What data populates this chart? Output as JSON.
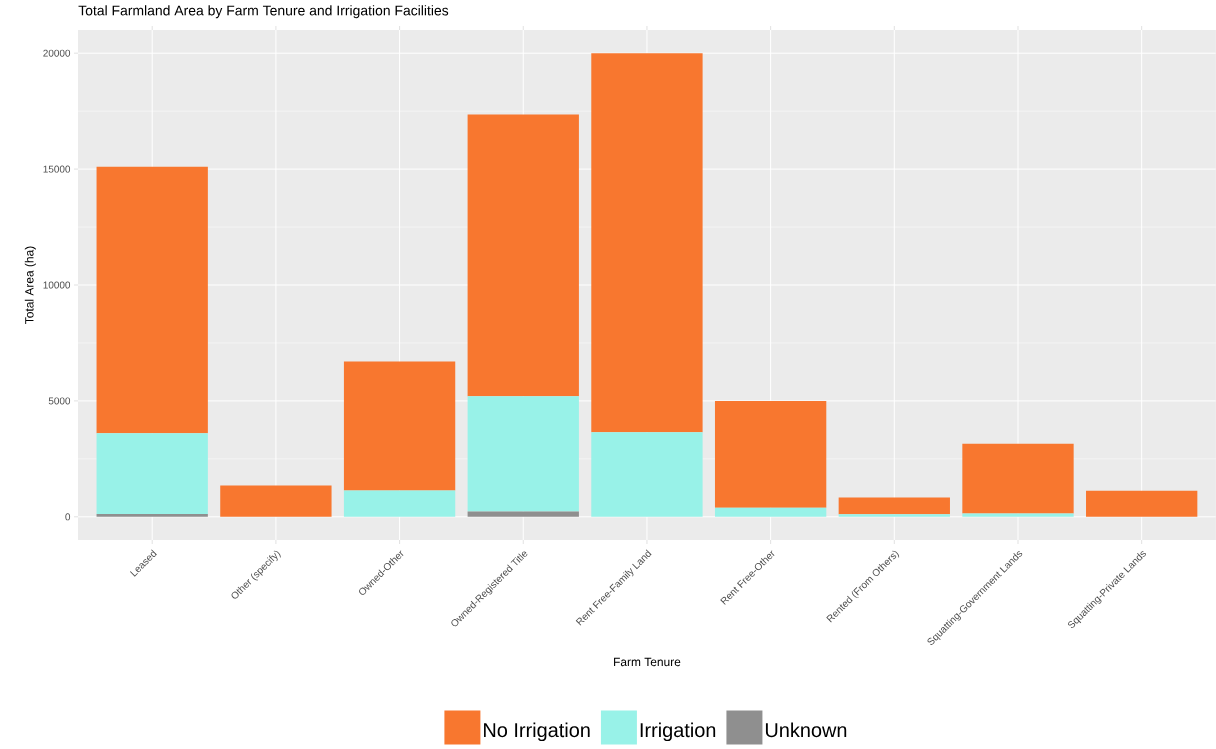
{
  "chart_data": {
    "type": "bar",
    "title": "Total Farmland Area by Farm Tenure and Irrigation Facilities",
    "xlabel": "Farm Tenure",
    "ylabel": "Total Area (ha)",
    "categories": [
      "Leased",
      "Other (specify)",
      "Owned-Other",
      "Owned-Registered Title",
      "Rent Free-Family Land",
      "Rent Free-Other",
      "Rented (From Others)",
      "Squatting-Government Lands",
      "Squatting-Private Lands"
    ],
    "stacked": true,
    "series": [
      {
        "name": "Unknown",
        "color": "#8f8f8f",
        "values": [
          120,
          null,
          null,
          230,
          null,
          null,
          null,
          null,
          null
        ]
      },
      {
        "name": "Irrigation",
        "color": "#98f2e8",
        "values": [
          3480,
          null,
          1140,
          4970,
          3650,
          390,
          110,
          140,
          null
        ]
      },
      {
        "name": "No Irrigation",
        "color": "#f8772f",
        "values": [
          11500,
          1350,
          5560,
          12150,
          16350,
          4610,
          720,
          3010,
          1130
        ]
      }
    ],
    "ylim": [
      -1000,
      21000
    ],
    "yticks": [
      0,
      5000,
      10000,
      15000,
      20000
    ],
    "grid": true,
    "legend": "bottom"
  }
}
